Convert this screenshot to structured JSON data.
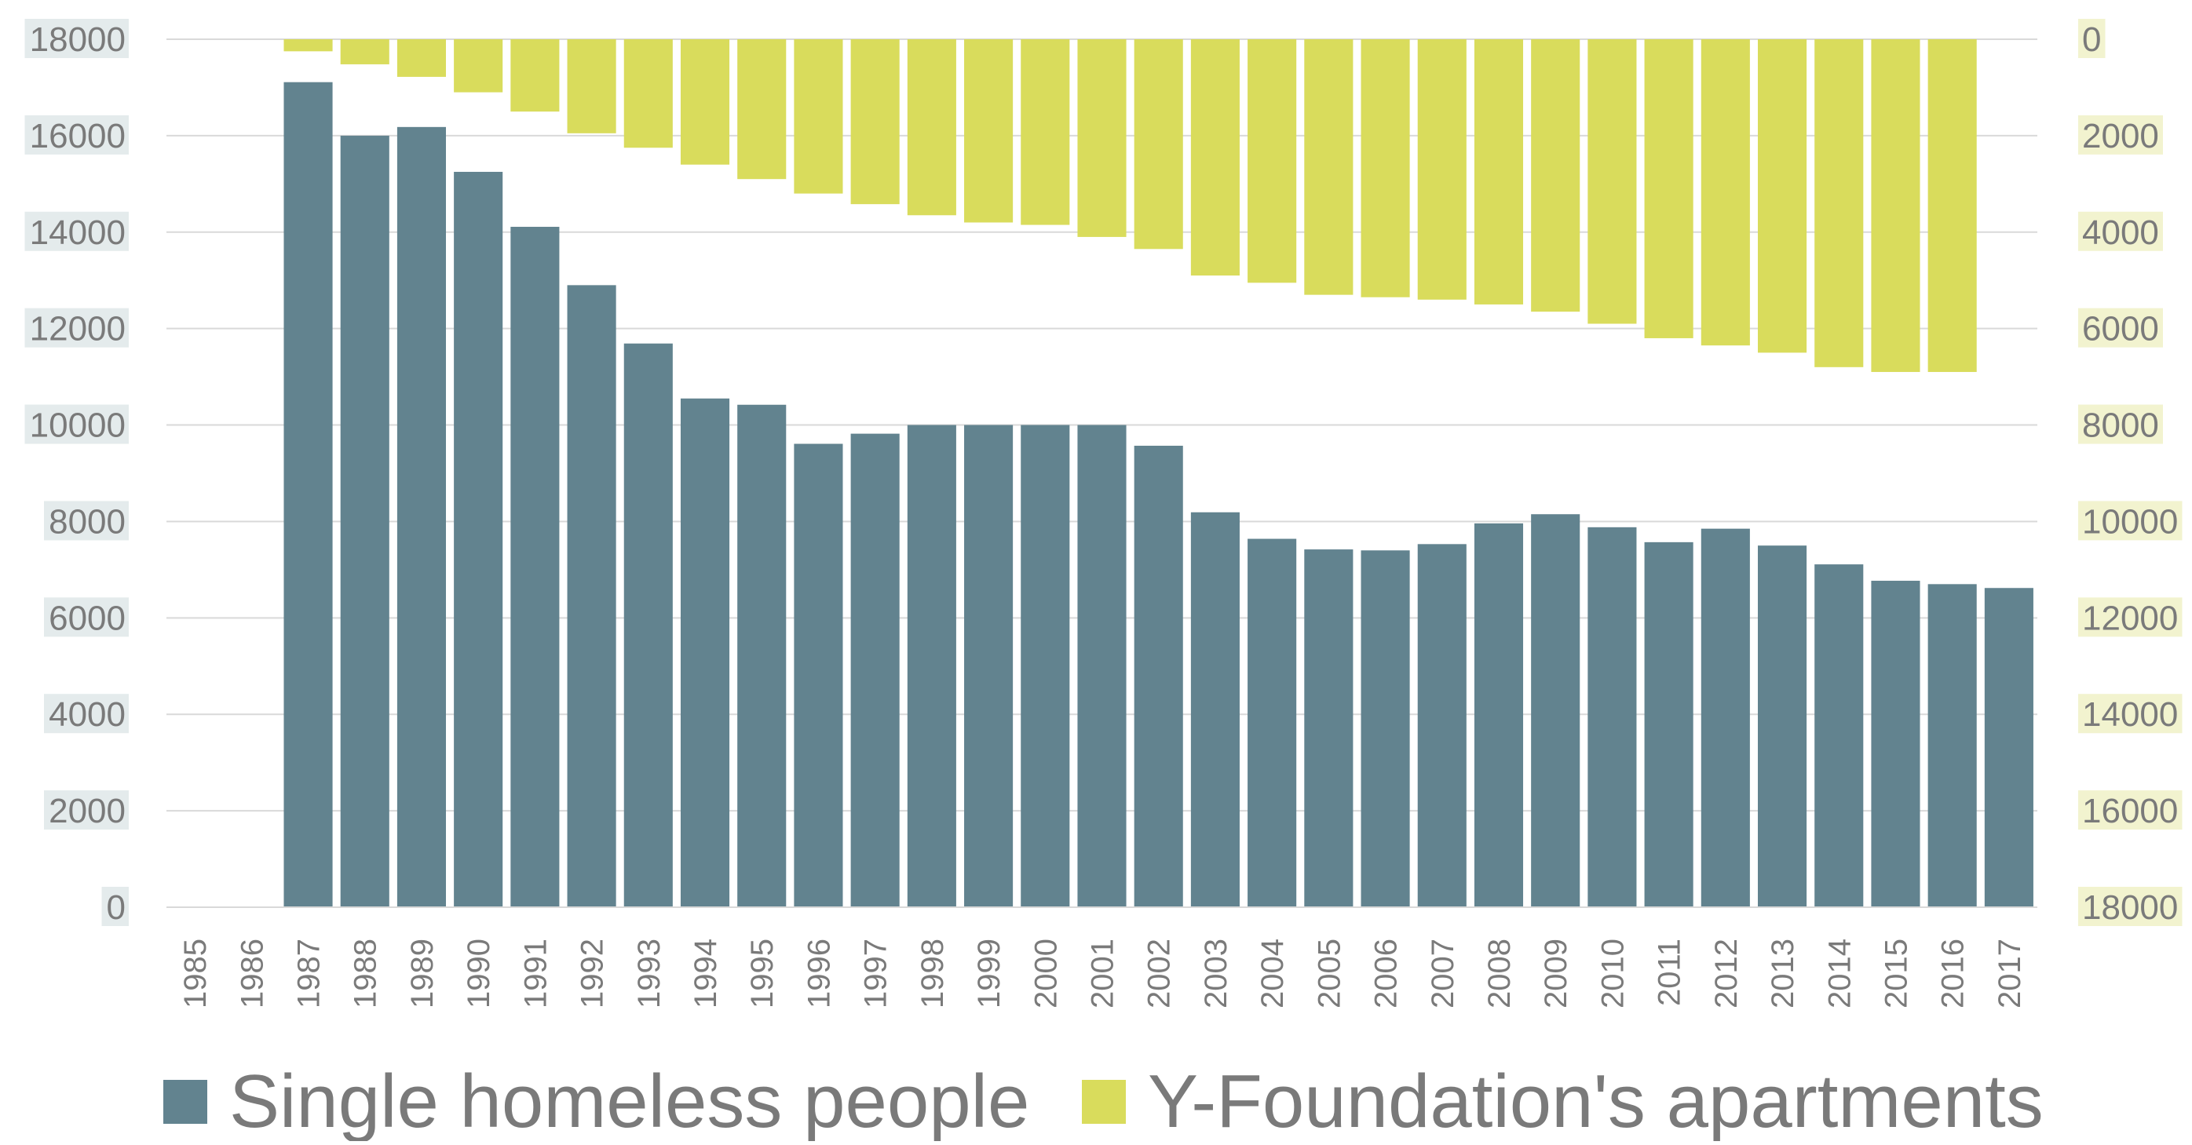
{
  "chart_data": {
    "type": "bar",
    "categories": [
      "1985",
      "1986",
      "1987",
      "1988",
      "1989",
      "1990",
      "1991",
      "1992",
      "1993",
      "1994",
      "1995",
      "1996",
      "1997",
      "1998",
      "1999",
      "2000",
      "2001",
      "2002",
      "2003",
      "2004",
      "2005",
      "2006",
      "2007",
      "2008",
      "2009",
      "2010",
      "2011",
      "2012",
      "2013",
      "2014",
      "2015",
      "2016",
      "2017"
    ],
    "series": [
      {
        "name": "Single homeless people",
        "axis": "left",
        "color": "#62838f",
        "values": [
          null,
          null,
          17110,
          16000,
          16180,
          15250,
          14110,
          12900,
          11690,
          10550,
          10420,
          9610,
          9820,
          10000,
          10000,
          10000,
          10000,
          9570,
          8190,
          7640,
          7420,
          7400,
          7530,
          7960,
          8150,
          7880,
          7570,
          7850,
          7500,
          7110,
          6770,
          6700,
          6620
        ]
      },
      {
        "name": "Y-Foundation's apartments",
        "axis": "right",
        "axis_inverted": true,
        "color": "#d9dc5c",
        "values": [
          null,
          null,
          250,
          520,
          780,
          1100,
          1500,
          1950,
          2250,
          2600,
          2900,
          3200,
          3420,
          3650,
          3800,
          3850,
          4100,
          4350,
          4900,
          5050,
          5300,
          5350,
          5400,
          5500,
          5650,
          5900,
          6200,
          6350,
          6500,
          6800,
          6900,
          6900,
          null
        ]
      }
    ],
    "left_axis": {
      "ylim": [
        0,
        18000
      ],
      "ticks": [
        "0",
        "2000",
        "4000",
        "6000",
        "8000",
        "10000",
        "12000",
        "14000",
        "16000",
        "18000"
      ]
    },
    "right_axis": {
      "ylim": [
        0,
        18000
      ],
      "inverted": true,
      "ticks": [
        "0",
        "2000",
        "4000",
        "6000",
        "8000",
        "10000",
        "12000",
        "14000",
        "16000",
        "18000"
      ]
    },
    "grid": true,
    "legend": {
      "placement": "bottom",
      "entries": [
        "Single homeless people",
        "Y-Foundation's apartments"
      ]
    },
    "colors": {
      "grid": "#d9d9d9",
      "left_tick_bg": "#e4ebec",
      "right_tick_bg": "#f2f3cf",
      "text": "#7a7a7a"
    }
  }
}
